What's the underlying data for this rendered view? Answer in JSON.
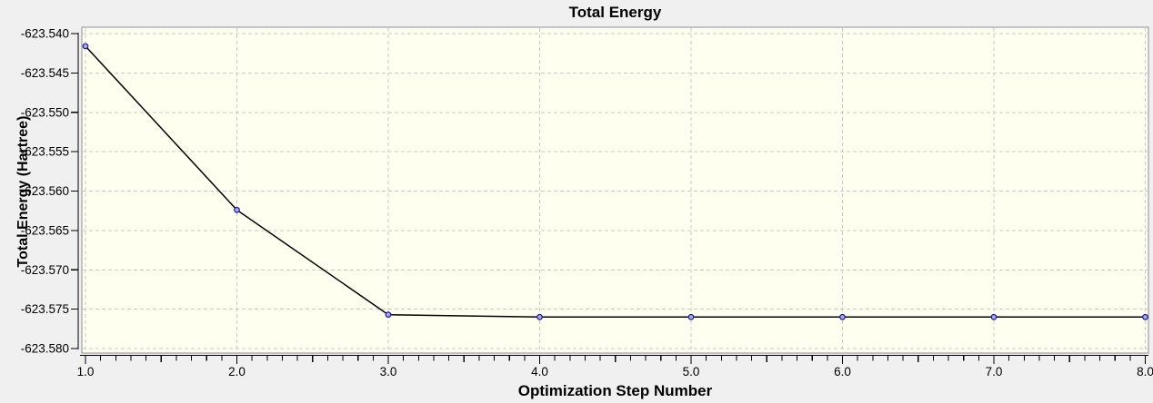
{
  "window": {
    "background_color": "#f0f0f0"
  },
  "chart_data": {
    "type": "line",
    "title": "Total Energy",
    "xlabel": "Optimization Step Number",
    "ylabel": "Total Energy (Hartree)",
    "x": [
      1,
      2,
      3,
      4,
      5,
      6,
      7,
      8
    ],
    "y": [
      -623.5416,
      -623.5624,
      -623.5757,
      -623.576,
      -623.576,
      -623.576,
      -623.576,
      -623.576
    ],
    "xlim": [
      1.0,
      8.0
    ],
    "ylim": [
      -623.58,
      -623.54
    ],
    "xticks": [
      1,
      2,
      3,
      4,
      5,
      6,
      7,
      8
    ],
    "xtick_labels": [
      "1.0",
      "2.0",
      "3.0",
      "4.0",
      "5.0",
      "6.0",
      "7.0",
      "8.0"
    ],
    "x_minor_step": 0.1,
    "yticks": [
      -623.54,
      -623.545,
      -623.55,
      -623.555,
      -623.56,
      -623.565,
      -623.57,
      -623.575,
      -623.58
    ],
    "ytick_labels": [
      "-623.540",
      "-623.545",
      "-623.550",
      "-623.555",
      "-623.560",
      "-623.565",
      "-623.570",
      "-623.575",
      "-623.580"
    ],
    "grid": true,
    "grid_style": "dashed",
    "legend": "none",
    "styles": {
      "plot_background": "#fffff0",
      "plot_border_color": "#8c8c96",
      "grid_color": "#c9c9c9",
      "axis_color": "#000000",
      "line_color": "#000000",
      "marker_shape": "circle",
      "marker_fill": "#a8aaee",
      "marker_stroke": "#1c1c8a",
      "text_color": "#000000"
    }
  }
}
